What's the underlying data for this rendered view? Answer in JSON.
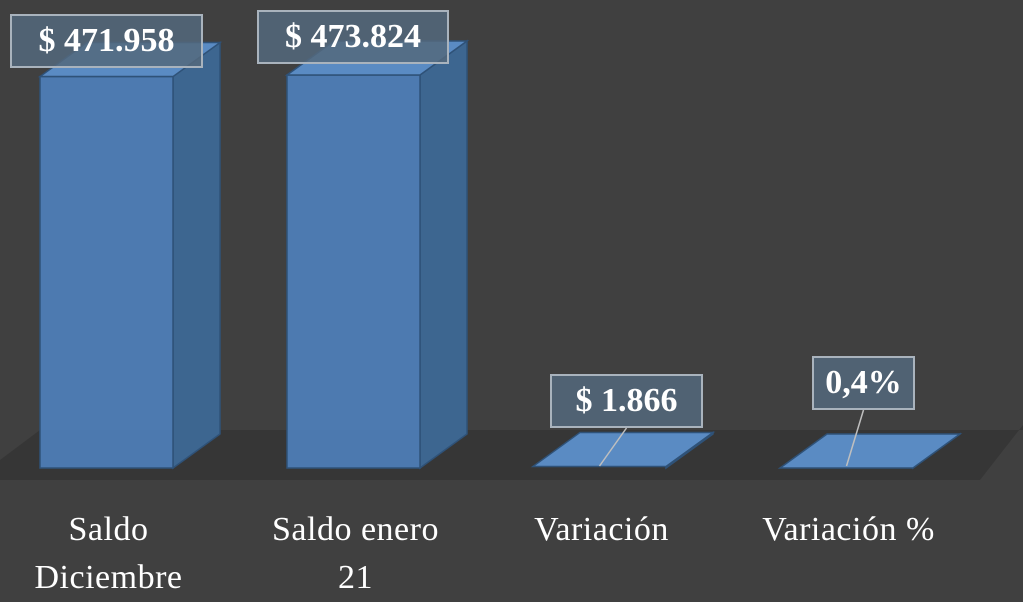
{
  "chart_data": {
    "type": "bar3d",
    "categories": [
      "Saldo Diciembre",
      "Saldo enero 21",
      "Variación",
      "Variación %"
    ],
    "values": [
      471958,
      473824,
      1866,
      0.4
    ],
    "value_labels": [
      "$ 471.958",
      "$ 473.824",
      "$ 1.866",
      "0,4%"
    ],
    "color": "#4f81bd"
  }
}
